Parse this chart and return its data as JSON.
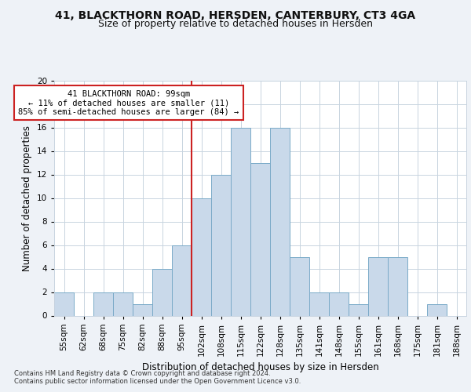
{
  "title1": "41, BLACKTHORN ROAD, HERSDEN, CANTERBURY, CT3 4GA",
  "title2": "Size of property relative to detached houses in Hersden",
  "xlabel": "Distribution of detached houses by size in Hersden",
  "ylabel": "Number of detached properties",
  "annotation_line1": "41 BLACKTHORN ROAD: 99sqm",
  "annotation_line2": "← 11% of detached houses are smaller (11)",
  "annotation_line3": "85% of semi-detached houses are larger (84) →",
  "bar_labels": [
    "55sqm",
    "62sqm",
    "68sqm",
    "75sqm",
    "82sqm",
    "88sqm",
    "95sqm",
    "102sqm",
    "108sqm",
    "115sqm",
    "122sqm",
    "128sqm",
    "135sqm",
    "141sqm",
    "148sqm",
    "155sqm",
    "161sqm",
    "168sqm",
    "175sqm",
    "181sqm",
    "188sqm"
  ],
  "bar_values": [
    2,
    0,
    2,
    2,
    1,
    4,
    6,
    10,
    12,
    16,
    13,
    16,
    5,
    2,
    2,
    1,
    5,
    5,
    0,
    1,
    0
  ],
  "bar_color": "#c9d9ea",
  "bar_edge_color": "#7aaac8",
  "red_line_x": 6.5,
  "ylim": [
    0,
    20
  ],
  "yticks": [
    0,
    2,
    4,
    6,
    8,
    10,
    12,
    14,
    16,
    18,
    20
  ],
  "footnote1": "Contains HM Land Registry data © Crown copyright and database right 2024.",
  "footnote2": "Contains public sector information licensed under the Open Government Licence v3.0.",
  "bg_color": "#eef2f7",
  "plot_bg_color": "#ffffff",
  "grid_color": "#c8d4e0",
  "annotation_box_color": "#ffffff",
  "annotation_box_edge": "#cc2222",
  "red_line_color": "#cc2222",
  "title1_fontsize": 10,
  "title2_fontsize": 9,
  "xlabel_fontsize": 8.5,
  "ylabel_fontsize": 8.5,
  "tick_fontsize": 7.5,
  "annotation_fontsize": 7.5,
  "footnote_fontsize": 6
}
